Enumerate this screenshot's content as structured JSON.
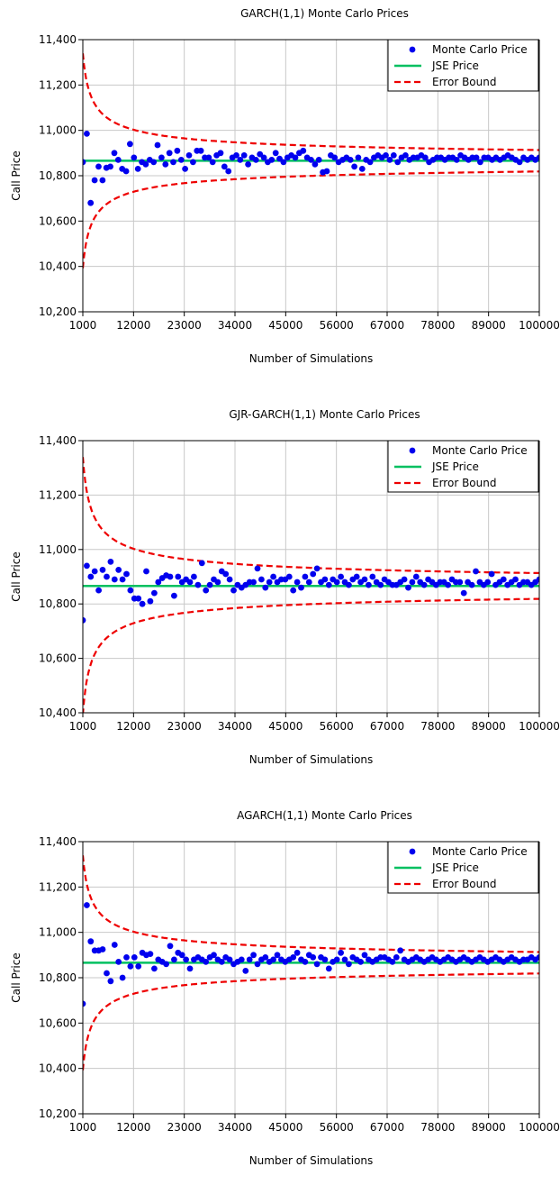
{
  "chart_data": [
    {
      "type": "scatter",
      "title": "GARCH(1,1) Monte Carlo Prices",
      "xlabel": "Number of Simulations",
      "ylabel": "Call Price",
      "xlim": [
        1000,
        100000
      ],
      "ylim": [
        10200,
        11400
      ],
      "x_ticks": [
        "1000",
        "12000",
        "23000",
        "34000",
        "45000",
        "56000",
        "67000",
        "78000",
        "89000",
        "100000"
      ],
      "y_ticks": [
        "10,200",
        "10,400",
        "10,600",
        "10,800",
        "11,000",
        "11,200",
        "11,400"
      ],
      "grid": true,
      "legend_position": "top-right",
      "legend": [
        "Monte Carlo Price",
        "JSE Price",
        "Error Bound"
      ],
      "series": [
        {
          "name": "Monte Carlo Price",
          "style": "markers",
          "color": "#0000ee",
          "values": [
            10860,
            10985,
            10680,
            10780,
            10840,
            10780,
            10835,
            10840,
            10900,
            10870,
            10830,
            10820,
            10940,
            10880,
            10830,
            10860,
            10850,
            10870,
            10860,
            10935,
            10880,
            10850,
            10900,
            10860,
            10910,
            10870,
            10830,
            10890,
            10860,
            10910,
            10910,
            10880,
            10880,
            10860,
            10890,
            10900,
            10840,
            10820,
            10880,
            10890,
            10870,
            10890,
            10850,
            10880,
            10870,
            10895,
            10880,
            10860,
            10870,
            10900,
            10875,
            10860,
            10880,
            10890,
            10880,
            10900,
            10910,
            10880,
            10870,
            10850,
            10870,
            10815,
            10820,
            10890,
            10880,
            10860,
            10870,
            10880,
            10870,
            10840,
            10880,
            10830,
            10870,
            10860,
            10880,
            10890,
            10880,
            10890,
            10870,
            10890,
            10860,
            10880,
            10890,
            10870,
            10880,
            10880,
            10890,
            10880,
            10860,
            10870,
            10880,
            10880,
            10870,
            10880,
            10880,
            10870,
            10890,
            10880,
            10870,
            10880,
            10880,
            10860,
            10880,
            10880,
            10870,
            10880,
            10870,
            10880,
            10890,
            10880,
            10870,
            10860,
            10880,
            10870,
            10880,
            10870,
            10880
          ]
        },
        {
          "name": "JSE Price",
          "style": "line",
          "color": "#00c060",
          "value": 10866
        },
        {
          "name": "Error Bound",
          "style": "dashed",
          "color": "#ee0000",
          "center": 10866,
          "coef": 148
        }
      ]
    },
    {
      "type": "scatter",
      "title": "GJR-GARCH(1,1) Monte Carlo Prices",
      "xlabel": "Number of Simulations",
      "ylabel": "Call Price",
      "xlim": [
        1000,
        100000
      ],
      "ylim": [
        10400,
        11400
      ],
      "x_ticks": [
        "1000",
        "12000",
        "23000",
        "34000",
        "45000",
        "56000",
        "67000",
        "78000",
        "89000",
        "100000"
      ],
      "y_ticks": [
        "10,400",
        "10,600",
        "10,800",
        "11,000",
        "11,200",
        "11,400"
      ],
      "grid": true,
      "legend_position": "top-right",
      "legend": [
        "Monte Carlo Price",
        "JSE Price",
        "Error Bound"
      ],
      "series": [
        {
          "name": "Monte Carlo Price",
          "style": "markers",
          "color": "#0000ee",
          "values": [
            10740,
            10940,
            10900,
            10920,
            10850,
            10925,
            10900,
            10955,
            10890,
            10925,
            10890,
            10910,
            10850,
            10820,
            10820,
            10800,
            10920,
            10810,
            10840,
            10880,
            10895,
            10905,
            10900,
            10830,
            10900,
            10880,
            10890,
            10880,
            10900,
            10870,
            10950,
            10850,
            10870,
            10890,
            10880,
            10920,
            10910,
            10890,
            10850,
            10870,
            10860,
            10870,
            10880,
            10880,
            10930,
            10890,
            10860,
            10880,
            10900,
            10880,
            10890,
            10890,
            10900,
            10850,
            10880,
            10860,
            10900,
            10880,
            10910,
            10930,
            10880,
            10890,
            10870,
            10890,
            10880,
            10900,
            10880,
            10870,
            10890,
            10900,
            10880,
            10890,
            10870,
            10900,
            10880,
            10870,
            10890,
            10880,
            10870,
            10870,
            10880,
            10890,
            10860,
            10880,
            10900,
            10880,
            10870,
            10890,
            10880,
            10870,
            10880,
            10880,
            10870,
            10890,
            10880,
            10880,
            10840,
            10880,
            10870,
            10920,
            10880,
            10870,
            10880,
            10910,
            10870,
            10880,
            10890,
            10870,
            10880,
            10890,
            10870,
            10880,
            10880,
            10870,
            10880,
            10890
          ]
        },
        {
          "name": "JSE Price",
          "style": "line",
          "color": "#00c060",
          "value": 10866
        },
        {
          "name": "Error Bound",
          "style": "dashed",
          "color": "#ee0000",
          "center": 10866,
          "coef": 148
        }
      ]
    },
    {
      "type": "scatter",
      "title": "AGARCH(1,1) Monte Carlo Prices",
      "xlabel": "Number of Simulations",
      "ylabel": "Call Price",
      "xlim": [
        1000,
        100000
      ],
      "ylim": [
        10200,
        11400
      ],
      "x_ticks": [
        "1000",
        "12000",
        "23000",
        "34000",
        "45000",
        "56000",
        "67000",
        "78000",
        "89000",
        "100000"
      ],
      "y_ticks": [
        "10,200",
        "10,400",
        "10,600",
        "10,800",
        "11,000",
        "11,200",
        "11,400"
      ],
      "grid": true,
      "legend_position": "top-right",
      "legend": [
        "Monte Carlo Price",
        "JSE Price",
        "Error Bound"
      ],
      "series": [
        {
          "name": "Monte Carlo Price",
          "style": "markers",
          "color": "#0000ee",
          "values": [
            10685,
            11120,
            10960,
            10920,
            10920,
            10925,
            10820,
            10785,
            10945,
            10870,
            10800,
            10890,
            10850,
            10890,
            10850,
            10910,
            10900,
            10905,
            10840,
            10880,
            10870,
            10860,
            10940,
            10880,
            10910,
            10900,
            10880,
            10840,
            10880,
            10890,
            10880,
            10870,
            10890,
            10900,
            10880,
            10870,
            10890,
            10880,
            10860,
            10870,
            10880,
            10830,
            10880,
            10900,
            10860,
            10880,
            10890,
            10870,
            10880,
            10900,
            10880,
            10870,
            10880,
            10890,
            10910,
            10880,
            10870,
            10900,
            10890,
            10860,
            10890,
            10880,
            10840,
            10870,
            10880,
            10910,
            10880,
            10860,
            10890,
            10880,
            10870,
            10900,
            10880,
            10870,
            10880,
            10890,
            10890,
            10880,
            10870,
            10890,
            10920,
            10880,
            10870,
            10880,
            10890,
            10880,
            10870,
            10880,
            10890,
            10880,
            10870,
            10880,
            10890,
            10880,
            10870,
            10880,
            10890,
            10880,
            10870,
            10880,
            10890,
            10880,
            10870,
            10880,
            10890,
            10880,
            10870,
            10880,
            10890,
            10880,
            10870,
            10880,
            10880,
            10890,
            10880,
            10890
          ]
        },
        {
          "name": "JSE Price",
          "style": "line",
          "color": "#00c060",
          "value": 10866
        },
        {
          "name": "Error Bound",
          "style": "dashed",
          "color": "#ee0000",
          "center": 10866,
          "coef": 148
        }
      ]
    }
  ]
}
